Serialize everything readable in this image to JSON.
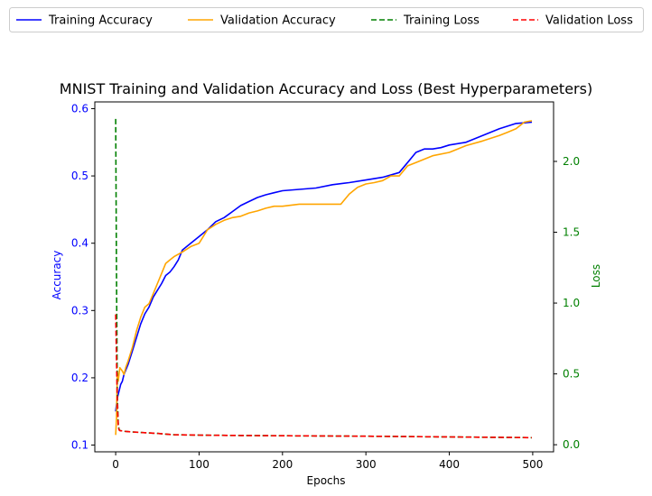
{
  "chart_data": {
    "type": "line",
    "title": "MNIST Training and Validation Accuracy and Loss (Best Hyperparameters)",
    "xlabel": "Epochs",
    "ylabel_left": "Accuracy",
    "ylabel_right": "Loss",
    "xlim": [
      -25,
      525
    ],
    "ylim_left": [
      0.09,
      0.61
    ],
    "ylim_right": [
      -0.05,
      2.42
    ],
    "xticks": [
      "0",
      "100",
      "200",
      "300",
      "400",
      "500"
    ],
    "yticks_left": [
      "0.1",
      "0.2",
      "0.3",
      "0.4",
      "0.5",
      "0.6"
    ],
    "yticks_right": [
      "0.0",
      "0.5",
      "1.0",
      "1.5",
      "2.0"
    ],
    "legend_position": "top",
    "colors": {
      "training_accuracy": "#0000ff",
      "validation_accuracy": "#ffa500",
      "training_loss": "#008000",
      "validation_loss": "#ff0000",
      "left_axis": "#0000ff",
      "right_axis": "#008000"
    },
    "series": [
      {
        "name": "Training Accuracy",
        "axis": "left",
        "style": "solid",
        "color": "#0000ff",
        "x": [
          0,
          1,
          2,
          4,
          6,
          8,
          10,
          15,
          20,
          25,
          30,
          35,
          40,
          45,
          50,
          55,
          60,
          65,
          70,
          75,
          80,
          90,
          100,
          110,
          120,
          130,
          140,
          150,
          160,
          170,
          180,
          190,
          200,
          220,
          240,
          260,
          280,
          300,
          320,
          340,
          350,
          360,
          370,
          380,
          390,
          400,
          420,
          440,
          460,
          480,
          499
        ],
        "y": [
          0.15,
          0.16,
          0.17,
          0.18,
          0.19,
          0.195,
          0.205,
          0.22,
          0.24,
          0.26,
          0.28,
          0.295,
          0.305,
          0.32,
          0.33,
          0.34,
          0.352,
          0.357,
          0.365,
          0.375,
          0.39,
          0.4,
          0.41,
          0.42,
          0.432,
          0.438,
          0.447,
          0.456,
          0.462,
          0.468,
          0.472,
          0.475,
          0.478,
          0.48,
          0.482,
          0.487,
          0.49,
          0.494,
          0.498,
          0.505,
          0.52,
          0.535,
          0.54,
          0.54,
          0.542,
          0.546,
          0.55,
          0.56,
          0.57,
          0.578,
          0.58
        ]
      },
      {
        "name": "Validation Accuracy",
        "axis": "left",
        "style": "solid",
        "color": "#ffa500",
        "x": [
          0,
          1,
          2,
          3,
          5,
          8,
          10,
          12,
          15,
          20,
          25,
          30,
          35,
          40,
          45,
          50,
          55,
          60,
          65,
          70,
          80,
          90,
          100,
          110,
          120,
          130,
          140,
          150,
          160,
          170,
          180,
          190,
          200,
          220,
          240,
          260,
          270,
          280,
          290,
          300,
          310,
          320,
          330,
          340,
          350,
          360,
          380,
          400,
          420,
          440,
          460,
          470,
          480,
          490,
          499
        ],
        "y": [
          0.115,
          0.14,
          0.21,
          0.195,
          0.215,
          0.21,
          0.205,
          0.215,
          0.225,
          0.245,
          0.27,
          0.29,
          0.305,
          0.31,
          0.325,
          0.34,
          0.355,
          0.37,
          0.375,
          0.38,
          0.387,
          0.395,
          0.4,
          0.42,
          0.428,
          0.434,
          0.438,
          0.44,
          0.445,
          0.448,
          0.452,
          0.455,
          0.455,
          0.458,
          0.458,
          0.458,
          0.458,
          0.473,
          0.483,
          0.488,
          0.49,
          0.493,
          0.5,
          0.5,
          0.515,
          0.52,
          0.53,
          0.535,
          0.545,
          0.552,
          0.56,
          0.565,
          0.57,
          0.58,
          0.582
        ]
      },
      {
        "name": "Training Loss",
        "axis": "right",
        "style": "dashed",
        "color": "#008000",
        "x": [
          0,
          1,
          2,
          3,
          4,
          5,
          10,
          20,
          50,
          70,
          100,
          150,
          200,
          300,
          400,
          499
        ],
        "y": [
          2.3,
          1.2,
          0.35,
          0.15,
          0.11,
          0.1,
          0.095,
          0.09,
          0.08,
          0.07,
          0.068,
          0.065,
          0.063,
          0.06,
          0.055,
          0.05
        ]
      },
      {
        "name": "Validation Loss",
        "axis": "right",
        "style": "dashed",
        "color": "#ff0000",
        "x": [
          0,
          1,
          2,
          3,
          4,
          5,
          10,
          20,
          50,
          70,
          100,
          150,
          200,
          300,
          400,
          499
        ],
        "y": [
          0.92,
          0.6,
          0.3,
          0.14,
          0.105,
          0.1,
          0.095,
          0.09,
          0.08,
          0.07,
          0.068,
          0.065,
          0.063,
          0.06,
          0.055,
          0.05
        ]
      }
    ]
  }
}
